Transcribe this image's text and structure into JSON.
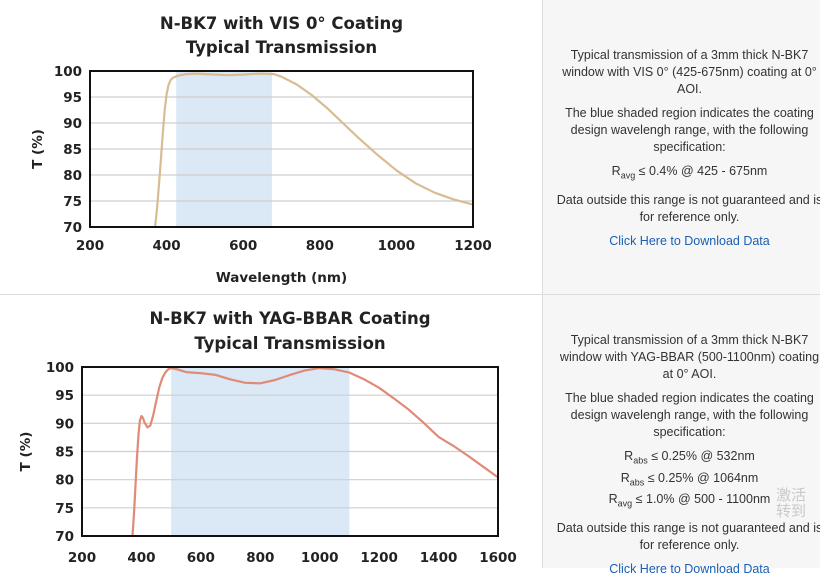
{
  "chart_data": [
    {
      "type": "line",
      "title": "N-BK7 with VIS 0° Coating",
      "subtitle": "Typical Transmission",
      "xlabel": "Wavelength (nm)",
      "ylabel": "T (%)",
      "xlim": [
        200,
        1200
      ],
      "ylim": [
        70,
        100
      ],
      "x_ticks": [
        200,
        400,
        600,
        800,
        1000,
        1200
      ],
      "y_ticks": [
        70,
        75,
        80,
        85,
        90,
        95,
        100
      ],
      "shaded_region": [
        425,
        675
      ],
      "grid": true,
      "color": "#d8bc92",
      "shade_color": "#dbe8f5",
      "series": [
        {
          "x": [
            370,
            375,
            380,
            385,
            390,
            395,
            400,
            405,
            410,
            415,
            420,
            430,
            450,
            480,
            500,
            530,
            560,
            600,
            640,
            680,
            700,
            740,
            780,
            820,
            860,
            900,
            950,
            1000,
            1050,
            1100,
            1150,
            1200
          ],
          "values": [
            70,
            73.5,
            78,
            83,
            88,
            92.5,
            95.5,
            97.3,
            98.2,
            98.6,
            98.8,
            99.1,
            99.4,
            99.5,
            99.4,
            99.3,
            99.2,
            99.3,
            99.5,
            99.4,
            98.9,
            97.4,
            95.3,
            92.8,
            90.0,
            87.2,
            83.9,
            80.9,
            78.4,
            76.6,
            75.3,
            74.3
          ]
        }
      ]
    },
    {
      "type": "line",
      "title": "N-BK7 with YAG-BBAR Coating",
      "subtitle": "Typical Transmission",
      "xlabel": "",
      "ylabel": "T (%)",
      "xlim": [
        200,
        1600
      ],
      "ylim": [
        70,
        100
      ],
      "x_ticks": [
        200,
        400,
        600,
        800,
        1000,
        1200,
        1400,
        1600
      ],
      "y_ticks": [
        70,
        75,
        80,
        85,
        90,
        95,
        100
      ],
      "shaded_region": [
        500,
        1100
      ],
      "grid": true,
      "color": "#e08a78",
      "shade_color": "#dbe8f5",
      "series": [
        {
          "x": [
            370,
            375,
            380,
            385,
            390,
            395,
            400,
            405,
            410,
            420,
            430,
            440,
            450,
            460,
            470,
            480,
            490,
            500,
            520,
            550,
            600,
            650,
            700,
            750,
            800,
            850,
            900,
            950,
            1000,
            1050,
            1100,
            1150,
            1200,
            1250,
            1300,
            1350,
            1400,
            1450,
            1500,
            1550,
            1600
          ],
          "values": [
            70,
            74,
            79,
            84,
            88,
            90.5,
            91.3,
            91.0,
            90.2,
            89.3,
            89.6,
            91.5,
            94.0,
            96.4,
            98.0,
            99.0,
            99.6,
            99.8,
            99.6,
            99.1,
            98.9,
            98.6,
            97.8,
            97.2,
            97.1,
            97.7,
            98.6,
            99.4,
            99.8,
            99.6,
            99.0,
            97.8,
            96.3,
            94.4,
            92.4,
            90.1,
            87.6,
            86.0,
            84.2,
            82.3,
            80.4
          ]
        }
      ]
    }
  ],
  "panels": [
    {
      "description": "Typical transmission of a 3mm thick N-BK7 window with VIS 0° (425-675nm) coating at 0° AOI.",
      "shaded_note": "The blue shaded region indicates the coating design wavelengh range, with the following specification:",
      "specs": [
        {
          "r": "R",
          "sub": "avg",
          "text": " ≤ 0.4% @ 425 - 675nm"
        }
      ],
      "disclaimer": "Data outside this range is not guaranteed and is for reference only.",
      "link": "Click Here to Download Data"
    },
    {
      "description": "Typical transmission of a 3mm thick N-BK7 window with YAG-BBAR (500-1100nm) coating at 0° AOI.",
      "shaded_note": "The blue shaded region indicates the coating design wavelengh range, with the following specification:",
      "specs": [
        {
          "r": "R",
          "sub": "abs",
          "text": " ≤ 0.25% @ 532nm"
        },
        {
          "r": "R",
          "sub": "abs",
          "text": " ≤ 0.25% @ 1064nm"
        },
        {
          "r": "R",
          "sub": "avg",
          "text": " ≤ 1.0% @ 500 - 1100nm"
        }
      ],
      "disclaimer": "Data outside this range is not guaranteed and is for reference only.",
      "link": "Click Here to Download Data"
    }
  ],
  "watermark": {
    "line1": "激活",
    "line2": "转到"
  }
}
